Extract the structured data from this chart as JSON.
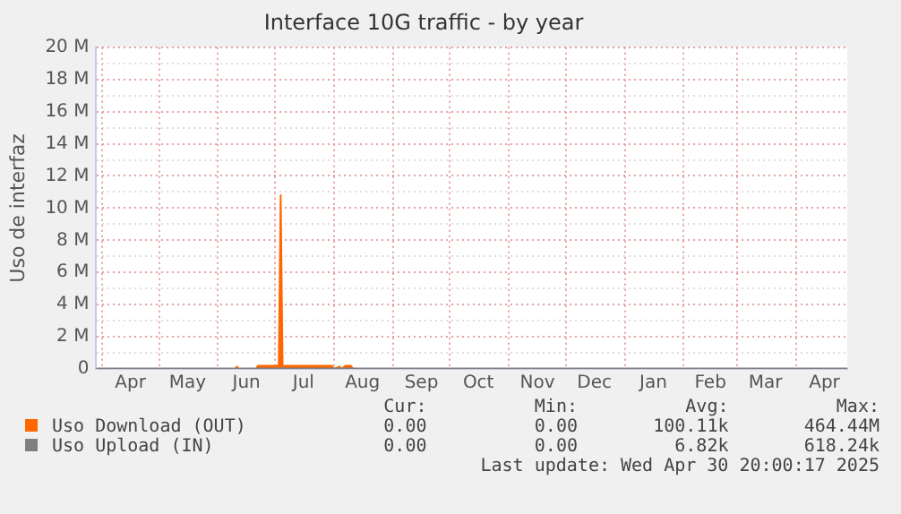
{
  "chart_data": {
    "type": "area",
    "title": "Interface 10G traffic - by year",
    "ylabel": "Uso de interfaz",
    "xlim": [
      "2024-03-29",
      "2025-04-28"
    ],
    "ylim": [
      0,
      20000000
    ],
    "xticks": [
      {
        "value": "2024-04-01",
        "label": null
      },
      {
        "value": "2024-04-16",
        "label": "Apr"
      },
      {
        "value": "2024-05-01",
        "label": null
      },
      {
        "value": "2024-05-16",
        "label": "May"
      },
      {
        "value": "2024-06-01",
        "label": null
      },
      {
        "value": "2024-06-16",
        "label": "Jun"
      },
      {
        "value": "2024-07-01",
        "label": null
      },
      {
        "value": "2024-07-16",
        "label": "Jul"
      },
      {
        "value": "2024-08-01",
        "label": null
      },
      {
        "value": "2024-08-16",
        "label": "Aug"
      },
      {
        "value": "2024-09-01",
        "label": null
      },
      {
        "value": "2024-09-16",
        "label": "Sep"
      },
      {
        "value": "2024-10-01",
        "label": null
      },
      {
        "value": "2024-10-16",
        "label": "Oct"
      },
      {
        "value": "2024-11-01",
        "label": null
      },
      {
        "value": "2024-11-16",
        "label": "Nov"
      },
      {
        "value": "2024-12-01",
        "label": null
      },
      {
        "value": "2024-12-16",
        "label": "Dec"
      },
      {
        "value": "2025-01-01",
        "label": null
      },
      {
        "value": "2025-01-16",
        "label": "Jan"
      },
      {
        "value": "2025-02-01",
        "label": null
      },
      {
        "value": "2025-02-15",
        "label": "Feb"
      },
      {
        "value": "2025-03-01",
        "label": null
      },
      {
        "value": "2025-03-16",
        "label": "Mar"
      },
      {
        "value": "2025-04-01",
        "label": null
      },
      {
        "value": "2025-04-16",
        "label": "Apr"
      }
    ],
    "yticks": [
      {
        "value": 0,
        "label": "0"
      },
      {
        "value": 1000000,
        "label": null
      },
      {
        "value": 2000000,
        "label": "2 M"
      },
      {
        "value": 3000000,
        "label": null
      },
      {
        "value": 4000000,
        "label": "4 M"
      },
      {
        "value": 5000000,
        "label": null
      },
      {
        "value": 6000000,
        "label": "6 M"
      },
      {
        "value": 7000000,
        "label": null
      },
      {
        "value": 8000000,
        "label": "8 M"
      },
      {
        "value": 9000000,
        "label": null
      },
      {
        "value": 10000000,
        "label": "10 M"
      },
      {
        "value": 11000000,
        "label": null
      },
      {
        "value": 12000000,
        "label": "12 M"
      },
      {
        "value": 13000000,
        "label": null
      },
      {
        "value": 14000000,
        "label": "14 M"
      },
      {
        "value": 15000000,
        "label": null
      },
      {
        "value": 16000000,
        "label": "16 M"
      },
      {
        "value": 17000000,
        "label": null
      },
      {
        "value": 18000000,
        "label": "18 M"
      },
      {
        "value": 19000000,
        "label": null
      },
      {
        "value": 20000000,
        "label": "20 M"
      }
    ],
    "grid": true,
    "legend": "bottom",
    "series": [
      {
        "name": "Uso Download (OUT)",
        "color": "#ff6600",
        "x": [
          "2024-03-29",
          "2024-06-10",
          "2024-06-11",
          "2024-06-12",
          "2024-06-21",
          "2024-06-22",
          "2024-07-03",
          "2024-07-04",
          "2024-07-05",
          "2024-07-31",
          "2024-08-01",
          "2024-08-04",
          "2024-08-05",
          "2024-08-07",
          "2024-08-10",
          "2024-08-11",
          "2025-04-28"
        ],
        "values": [
          0,
          0,
          150000,
          0,
          0,
          200000,
          200000,
          10800000,
          200000,
          200000,
          0,
          150000,
          0,
          200000,
          200000,
          0,
          0
        ]
      },
      {
        "name": "Uso Upload (IN)",
        "type": "line",
        "color": "#808080",
        "x": [
          "2024-03-29",
          "2025-04-28"
        ],
        "values": [
          0,
          0
        ]
      }
    ],
    "annotations": [
      "Cur:",
      "Min:",
      "Avg:",
      "Max:",
      "0.00",
      "0.00",
      "100.11k",
      "464.44M",
      "0.00",
      "0.00",
      "6.82k",
      "618.24k",
      "Last update: Wed Apr 30 20:00:17 2025"
    ]
  }
}
